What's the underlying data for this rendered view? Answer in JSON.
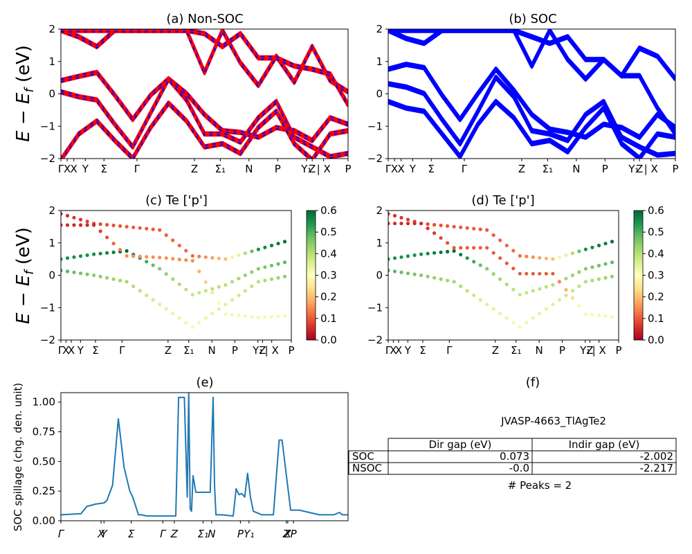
{
  "bands": {
    "ylim": [
      -2,
      2
    ],
    "yticks": [
      "−2",
      "−1",
      "0",
      "1",
      "2"
    ],
    "ylabel": "E − E_f (eV)",
    "kpath_labels": [
      "Γ",
      "X",
      "X",
      "Y",
      "Σ",
      "Γ",
      "Z",
      "Σ₁",
      "N",
      "P",
      "Y₁",
      "Z",
      "| X",
      "P"
    ]
  },
  "colors": {
    "nonsoc_line": "#ff0000",
    "nonsoc_dash": "#0000ff",
    "soc_line": "#0000ff",
    "spill_line": "#1f77b4"
  },
  "panels": {
    "a": {
      "title": "(a) Non-SOC"
    },
    "b": {
      "title": "(b) SOC"
    },
    "c": {
      "title": "(c)  Te ['p']",
      "colorbar_ticks": [
        "0.0",
        "0.1",
        "0.2",
        "0.3",
        "0.4",
        "0.5",
        "0.6"
      ],
      "colormap": "RdYlGn"
    },
    "d": {
      "title": "(d) Te ['p']",
      "colorbar_ticks": [
        "0.0",
        "0.1",
        "0.2",
        "0.3",
        "0.4",
        "0.5",
        "0.6"
      ],
      "colormap": "RdYlGn"
    },
    "e": {
      "title": "(e)",
      "ylabel": "SOC spillage (chg. den. unit)",
      "yticks": [
        "0.00",
        "0.25",
        "0.50",
        "0.75",
        "1.00"
      ],
      "xticks": [
        "Γ",
        "X",
        "Y",
        "Σ",
        "Γ",
        "Z",
        "Σ₁",
        "N",
        "P",
        "Y₁",
        "Z",
        "X",
        "P"
      ]
    },
    "f": {
      "title": "(f)",
      "material": "JVASP-4663_TlAgTe2",
      "table": {
        "columns": [
          "Dir gap (eV)",
          "Indir gap (eV)"
        ],
        "rows": [
          {
            "label": "SOC",
            "dir": "0.073",
            "indir": "-2.002"
          },
          {
            "label": "NSOC",
            "dir": "-0.0",
            "indir": "-2.217"
          }
        ]
      },
      "peaks": "# Peaks = 2"
    }
  },
  "chart_data": [
    {
      "type": "line",
      "title": "(a) Non-SOC",
      "ylabel": "E − E_f (eV)",
      "ylim": [
        -2,
        2
      ],
      "x_labels": [
        "Γ",
        "X",
        "X",
        "Y",
        "Σ",
        "Γ",
        "Z",
        "Σ₁",
        "N",
        "P",
        "Y₁",
        "Z",
        "| X",
        "P"
      ],
      "series": [
        {
          "values": [
            0.45,
            0.58,
            0.7,
            0.0,
            -0.75,
            0.0,
            0.5,
            0.05,
            -0.6,
            -1.1,
            -1.15,
            -1.3,
            -1.0,
            -1.1,
            -1.4,
            -0.7,
            -0.9
          ]
        },
        {
          "values": [
            0.1,
            -0.05,
            -0.15,
            -0.9,
            -1.6,
            -0.55,
            0.5,
            -0.15,
            -1.2,
            -1.2,
            -1.45,
            -0.7,
            -0.2,
            -1.3,
            -1.6,
            -1.9,
            -1.8
          ]
        },
        {
          "values": [
            -2.0,
            -1.2,
            -0.8,
            -1.4,
            -1.95,
            -1.0,
            -0.25,
            -0.8,
            -1.6,
            -1.5,
            -1.8,
            -1.0,
            -0.5,
            -1.5,
            -2.0,
            -1.2,
            -1.1
          ]
        },
        {
          "values": [
            2.0,
            1.8,
            1.5,
            2.0,
            2.0,
            2.0,
            2.0,
            2.0,
            0.7,
            2.0,
            1.0,
            0.3,
            1.2,
            0.4,
            1.5,
            0.45,
            0.1
          ]
        },
        {
          "values": [
            2.0,
            2.0,
            2.0,
            2.0,
            2.0,
            2.0,
            2.0,
            2.0,
            1.9,
            1.5,
            1.9,
            1.15,
            1.15,
            0.9,
            0.8,
            0.65,
            -0.3
          ]
        }
      ]
    },
    {
      "type": "line",
      "title": "(b) SOC",
      "ylim": [
        -2,
        2
      ],
      "x_labels": [
        "Γ",
        "X",
        "X",
        "Y",
        "Σ",
        "Γ",
        "Z",
        "Σ₁",
        "N",
        "P",
        "Y₁",
        "Z",
        "| X",
        "P"
      ],
      "series": [
        {
          "values": [
            0.8,
            0.95,
            0.85,
            0.0,
            -0.75,
            0.05,
            0.8,
            0.15,
            -0.6,
            -1.05,
            -1.15,
            -1.3,
            -0.9,
            -1.0,
            -1.3,
            -0.6,
            -1.0
          ]
        },
        {
          "values": [
            0.35,
            0.25,
            0.05,
            -0.75,
            -1.5,
            -0.5,
            0.55,
            -0.05,
            -1.1,
            -1.2,
            -1.4,
            -0.6,
            -0.2,
            -1.3,
            -1.6,
            -1.85,
            -1.8
          ]
        },
        {
          "values": [
            -0.2,
            -0.4,
            -0.5,
            -1.2,
            -1.9,
            -0.9,
            -0.2,
            -0.7,
            -1.5,
            -1.4,
            -1.75,
            -1.0,
            -0.4,
            -1.5,
            -1.95,
            -1.2,
            -1.3
          ]
        },
        {
          "values": [
            2.0,
            1.75,
            1.6,
            2.0,
            2.0,
            2.0,
            2.0,
            2.0,
            0.9,
            2.0,
            1.1,
            0.5,
            1.1,
            0.6,
            1.45,
            1.2,
            0.5
          ]
        },
        {
          "values": [
            2.0,
            2.0,
            2.0,
            2.0,
            2.0,
            2.0,
            2.0,
            2.0,
            1.8,
            1.6,
            1.8,
            1.1,
            1.1,
            0.6,
            0.6,
            -0.4,
            -1.2
          ]
        }
      ]
    },
    {
      "type": "scatter",
      "title": "(c)  Te ['p']",
      "ylim": [
        -2,
        2
      ],
      "colorbar": [
        0.0,
        0.6
      ],
      "series": [
        {
          "y": [
            0.5,
            0.65,
            0.75,
            0.2,
            -0.6,
            -0.3,
            0.2,
            0.45
          ],
          "c": [
            0.55,
            0.55,
            0.6,
            0.45,
            0.38,
            0.4,
            0.45,
            0.5
          ]
        },
        {
          "y": [
            0.15,
            0.0,
            -0.2,
            -0.9,
            -1.6,
            -0.9,
            -0.2,
            0.0
          ],
          "c": [
            0.5,
            0.45,
            0.42,
            0.35,
            0.32,
            0.35,
            0.4,
            0.45
          ]
        },
        {
          "y": [
            1.9,
            1.6,
            1.5,
            1.4,
            0.6,
            0.5,
            0.8,
            1.1
          ],
          "c": [
            0.05,
            0.08,
            0.1,
            0.1,
            0.12,
            0.2,
            0.55,
            0.6
          ]
        },
        {
          "y": [
            1.55,
            1.55,
            0.6,
            0.55,
            0.45,
            -1.2,
            -1.3,
            -1.25
          ],
          "c": [
            0.05,
            0.05,
            0.15,
            0.15,
            0.15,
            0.32,
            0.32,
            0.32
          ]
        }
      ]
    },
    {
      "type": "scatter",
      "title": "(d) Te ['p']",
      "ylim": [
        -2,
        2
      ],
      "colorbar": [
        0.0,
        0.6
      ],
      "series": [
        {
          "y": [
            0.5,
            0.65,
            0.75,
            0.2,
            -0.6,
            -0.3,
            0.2,
            0.45
          ],
          "c": [
            0.55,
            0.55,
            0.6,
            0.45,
            0.38,
            0.4,
            0.45,
            0.5
          ]
        },
        {
          "y": [
            0.15,
            0.0,
            -0.2,
            -0.9,
            -1.6,
            -0.9,
            -0.2,
            0.0
          ],
          "c": [
            0.5,
            0.45,
            0.42,
            0.35,
            0.32,
            0.35,
            0.4,
            0.45
          ]
        },
        {
          "y": [
            1.9,
            1.6,
            1.5,
            1.4,
            0.6,
            0.5,
            0.8,
            1.1
          ],
          "c": [
            0.05,
            0.08,
            0.1,
            0.1,
            0.12,
            0.2,
            0.55,
            0.6
          ]
        },
        {
          "y": [
            1.6,
            1.6,
            0.85,
            0.85,
            0.05,
            0.05,
            -1.2,
            -1.3
          ],
          "c": [
            0.05,
            0.05,
            0.1,
            0.1,
            0.1,
            0.1,
            0.32,
            0.32
          ]
        }
      ]
    },
    {
      "type": "line",
      "title": "(e)",
      "ylabel": "SOC spillage (chg. den. unit)",
      "ylim": [
        0,
        1.08
      ],
      "x_labels": [
        "Γ",
        "X",
        "Y",
        "Σ",
        "Γ",
        "Z",
        "Σ₁",
        "N",
        "P",
        "Y₁",
        "Z",
        "X",
        "P"
      ],
      "series": [
        {
          "x": [
            0,
            0.07,
            0.09,
            0.12,
            0.15,
            0.16,
            0.18,
            0.2,
            0.22,
            0.24,
            0.25,
            0.27,
            0.28,
            0.3,
            0.35,
            0.4,
            0.41,
            0.43,
            0.44,
            0.445,
            0.45,
            0.455,
            0.46,
            0.47,
            0.48,
            0.52,
            0.53,
            0.535,
            0.54,
            0.56,
            0.6,
            0.61,
            0.62,
            0.63,
            0.64,
            0.65,
            0.66,
            0.67,
            0.7,
            0.74,
            0.76,
            0.77,
            0.8,
            0.83,
            0.9,
            0.95,
            0.97,
            0.98,
            1.0
          ],
          "y": [
            0.05,
            0.06,
            0.12,
            0.14,
            0.15,
            0.17,
            0.3,
            0.86,
            0.45,
            0.25,
            0.2,
            0.05,
            0.05,
            0.04,
            0.04,
            0.04,
            1.04,
            1.04,
            0.2,
            1.08,
            0.1,
            0.08,
            0.38,
            0.24,
            0.24,
            0.24,
            1.04,
            0.3,
            0.05,
            0.05,
            0.04,
            0.27,
            0.22,
            0.23,
            0.2,
            0.4,
            0.2,
            0.08,
            0.05,
            0.05,
            0.68,
            0.68,
            0.09,
            0.09,
            0.05,
            0.05,
            0.07,
            0.05,
            0.05
          ]
        }
      ]
    }
  ]
}
